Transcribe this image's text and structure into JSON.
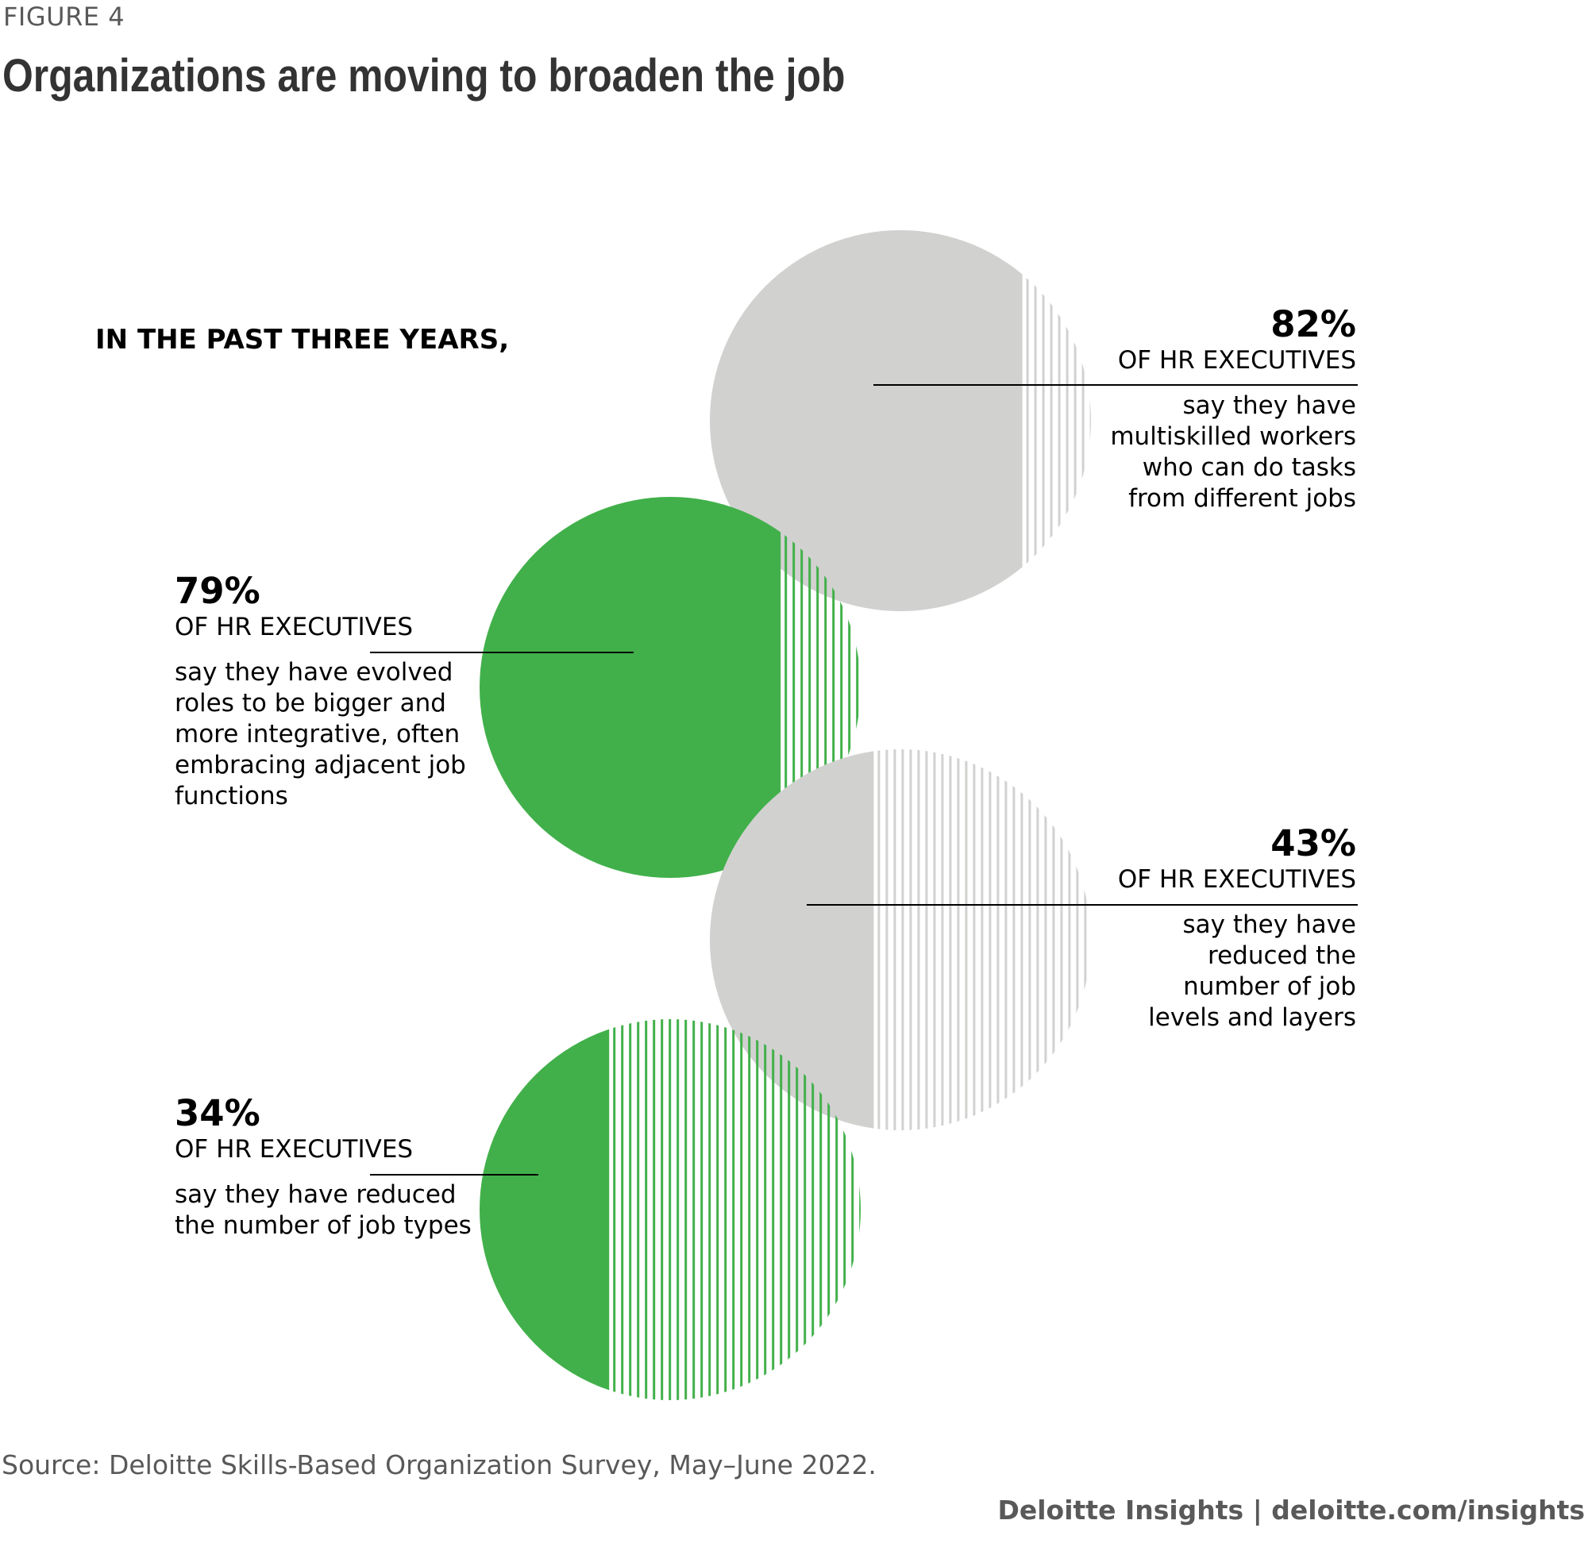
{
  "figure_label": "FIGURE 4",
  "title": "Organizations are moving to broaden the job",
  "intro": "IN THE PAST THREE YEARS,",
  "colors": {
    "grey": "#d1d1d0",
    "green": "#41b04a",
    "text": "#000000"
  },
  "chart_data": {
    "type": "pie",
    "title": "Organizations are moving to broaden the job",
    "series": [
      {
        "name": "multiskilled",
        "value": 82,
        "unit": "%",
        "color": "grey",
        "subtitle": "OF HR EXECUTIVES",
        "description": "say they have multiskilled workers who can do tasks from different jobs",
        "lines": [
          "say they have",
          "multiskilled workers",
          "who can do tasks",
          "from different jobs"
        ]
      },
      {
        "name": "evolved-roles",
        "value": 79,
        "unit": "%",
        "color": "green",
        "subtitle": "OF HR EXECUTIVES",
        "description": "say they have evolved roles to be bigger and more integrative, often embracing adjacent job functions",
        "lines": [
          "say they have evolved",
          "roles to be bigger and",
          "more integrative, often",
          "embracing adjacent job",
          "functions"
        ]
      },
      {
        "name": "reduced-levels",
        "value": 43,
        "unit": "%",
        "color": "grey",
        "subtitle": "OF HR EXECUTIVES",
        "description": "say they have reduced the number of job levels and layers",
        "lines": [
          "say they have",
          "reduced the",
          "number of job",
          "levels and layers"
        ]
      },
      {
        "name": "reduced-types",
        "value": 34,
        "unit": "%",
        "color": "green",
        "subtitle": "OF HR EXECUTIVES",
        "description": "say they have reduced the number of job types",
        "lines": [
          "say they have reduced",
          "the number of job types"
        ]
      }
    ]
  },
  "labels": {
    "l82": {
      "pct": "82%",
      "sub": "OF HR EXECUTIVES",
      "d1": "say they have",
      "d2": "multiskilled workers",
      "d3": "who can do tasks",
      "d4": "from different jobs"
    },
    "l79": {
      "pct": "79%",
      "sub": "OF HR EXECUTIVES",
      "d1": "say they have evolved",
      "d2": "roles to be bigger and",
      "d3": "more integrative, often",
      "d4": "embracing adjacent job",
      "d5": "functions"
    },
    "l43": {
      "pct": "43%",
      "sub": "OF HR EXECUTIVES",
      "d1": "say they have",
      "d2": "reduced the",
      "d3": "number of job",
      "d4": "levels and layers"
    },
    "l34": {
      "pct": "34%",
      "sub": "OF HR EXECUTIVES",
      "d1": "say they have reduced",
      "d2": "the number of job types"
    }
  },
  "source": "Source: Deloitte Skills-Based Organization Survey, May–June 2022.",
  "footer": {
    "brand": "Deloitte Insights",
    "separator": "|",
    "url": "deloitte.com/insights"
  }
}
